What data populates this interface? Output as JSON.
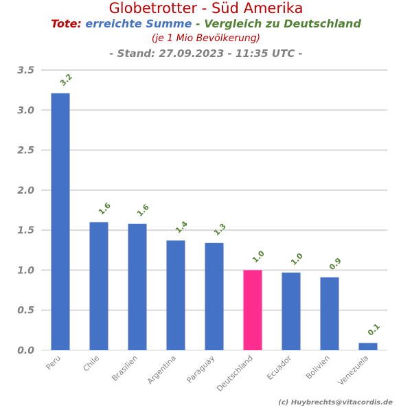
{
  "header": {
    "title": "Globetrotter - Süd Amerika",
    "sub_a": "Tote:",
    "sub_b": "erreichte Summe",
    "sub_c": "- Vergleich zu Deutschland",
    "sub2": "(je 1 Mio Bevölkerung)",
    "sub3": "- Stand: 27.09.2023 - 11:35 UTC -"
  },
  "credit": "(c) Huybrechts@vitacordis.de",
  "colors": {
    "bar": "#4472c4",
    "highlight": "#ff2d8e",
    "label": "#548235",
    "title": "#c00000",
    "grid": "#d9d9d9"
  },
  "chart_data": {
    "type": "bar",
    "title": "Globetrotter - Süd Amerika",
    "categories": [
      "Peru",
      "Chile",
      "Brasilien",
      "Argentina",
      "Paraguay",
      "Deutschland",
      "Ecuador",
      "Bolivien",
      "Venezuela"
    ],
    "values": [
      3.21,
      1.6,
      1.58,
      1.37,
      1.34,
      1.0,
      0.97,
      0.91,
      0.09
    ],
    "data_labels": [
      "3.2",
      "1.6",
      "1.6",
      "1.4",
      "1.3",
      "1.0",
      "1.0",
      "0.9",
      "0.1"
    ],
    "highlight": "Deutschland",
    "ylim": [
      0,
      3.5
    ],
    "yticks": [
      "0.0",
      "0.5",
      "1.0",
      "1.5",
      "2.0",
      "2.5",
      "3.0",
      "3.5"
    ],
    "grid": true
  }
}
